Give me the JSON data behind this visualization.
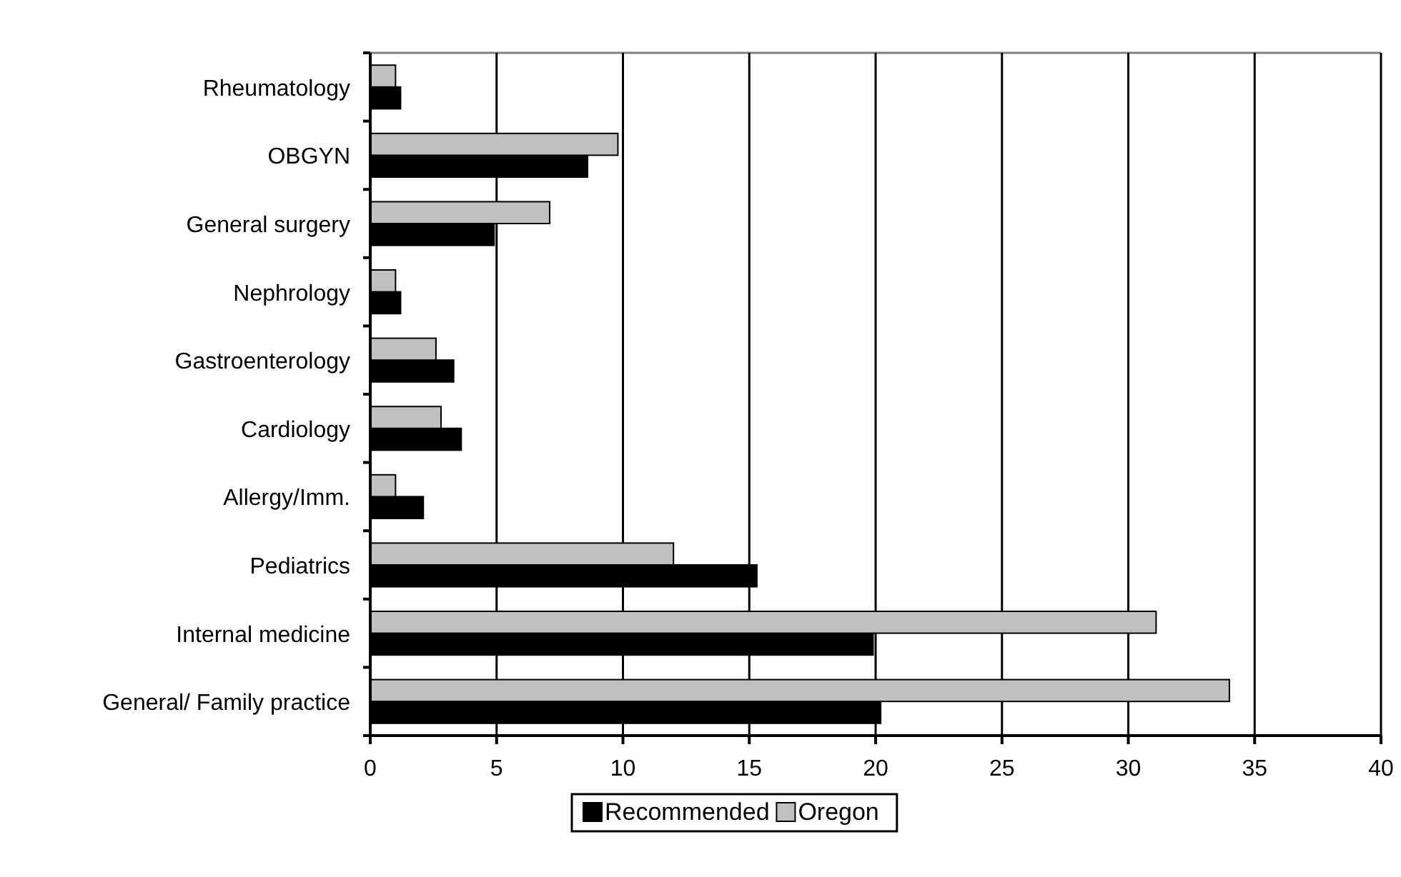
{
  "chart_data": {
    "type": "bar",
    "orientation": "horizontal",
    "categories": [
      "Rheumatology",
      "OBGYN",
      "General surgery",
      "Nephrology",
      "Gastroenterology",
      "Cardiology",
      "Allergy/Imm.",
      "Pediatrics",
      "Internal medicine",
      "General/ Family practice"
    ],
    "series": [
      {
        "name": "Recommended",
        "color": "#000000",
        "values": [
          1.2,
          8.6,
          4.9,
          1.2,
          3.3,
          3.6,
          2.1,
          15.3,
          19.9,
          20.2
        ]
      },
      {
        "name": "Oregon",
        "color": "#c0c0c0",
        "values": [
          1.0,
          9.8,
          7.1,
          1.0,
          2.6,
          2.8,
          1.0,
          12.0,
          31.1,
          34.0
        ]
      }
    ],
    "xlim": [
      0,
      40
    ],
    "xticks": [
      0,
      5,
      10,
      15,
      20,
      25,
      30,
      35,
      40
    ],
    "grid": "x",
    "legend": "bottom"
  }
}
